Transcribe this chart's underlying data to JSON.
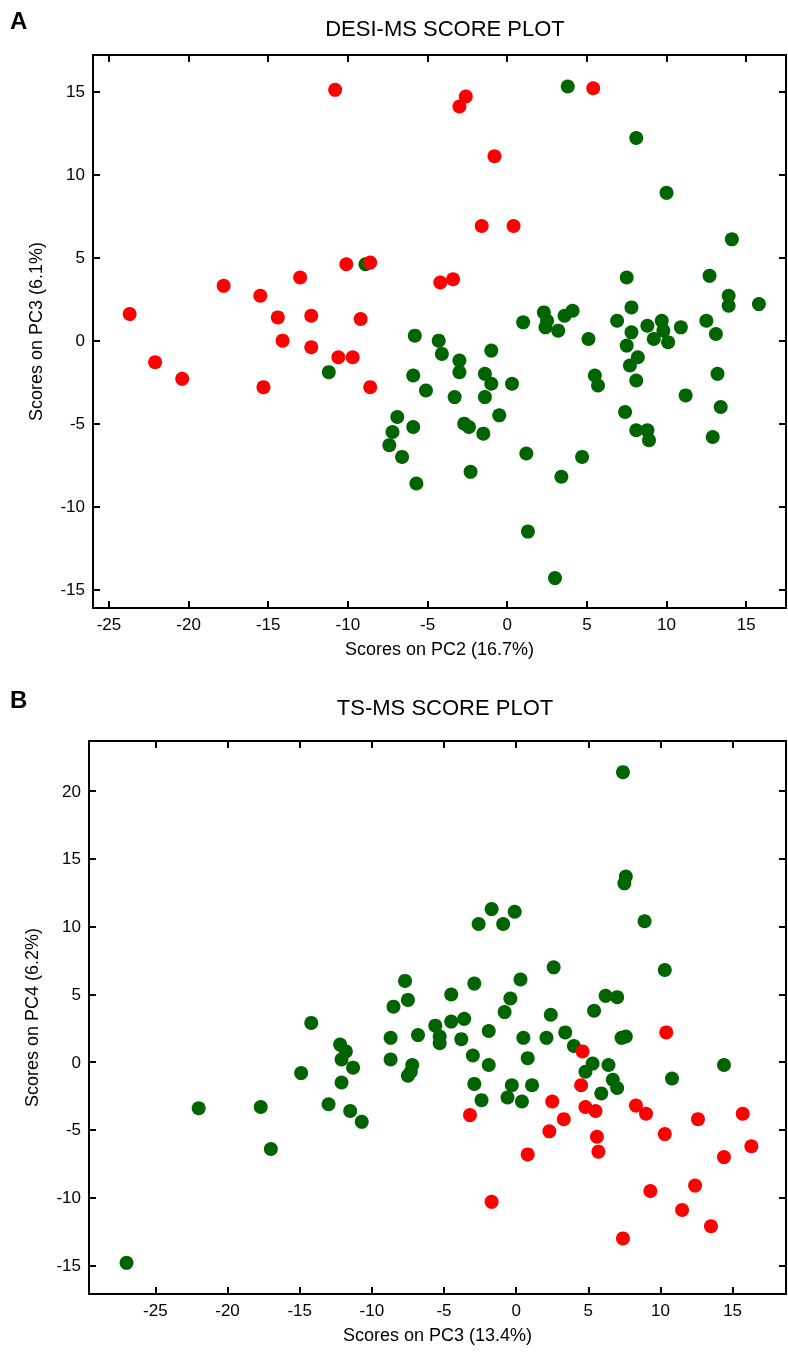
{
  "chart_data": [
    {
      "type": "scatter",
      "title": "DESI-MS SCORE PLOT",
      "xlabel": "Scores on PC2 (16.7%)",
      "ylabel": "Scores on PC3 (6.1%)",
      "annotations": [
        "A"
      ],
      "marker": "circle",
      "xlim": [
        -26,
        17.5
      ],
      "xticks": [
        -25,
        -20,
        -15,
        -10,
        -5,
        0,
        5,
        10,
        15
      ],
      "ylim": [
        -16.1,
        17.2
      ],
      "yticks": [
        -15,
        -10,
        -5,
        0,
        5,
        10,
        15
      ],
      "series": [
        {
          "color": "#006400",
          "x": [
            -8.9,
            -11.2,
            -5.8,
            -5.9,
            -5.1,
            -6.9,
            -7.2,
            -7.4,
            -6.6,
            -5.9,
            -5.7,
            3.8,
            8.1,
            10.0,
            14.1,
            7.5,
            12.7,
            13.9,
            13.9,
            15.8,
            7.8,
            6.9,
            7.8,
            8.8,
            9.7,
            9.8,
            9.2,
            10.1,
            10.9,
            12.5,
            13.1,
            7.5,
            8.2,
            7.7,
            8.1,
            13.2,
            5.5,
            5.7,
            11.2,
            13.4,
            7.4,
            8.1,
            8.8,
            8.9,
            12.9,
            5.1,
            1.0,
            2.3,
            2.5,
            2.4,
            3.2,
            3.6,
            4.1,
            -4.3,
            -4.1,
            -3.0,
            -3.0,
            -1.0,
            -1.4,
            -1.0,
            0.3,
            -3.3,
            -1.4,
            -2.7,
            -2.4,
            -0.5,
            -1.5,
            -2.3,
            1.2,
            3.4,
            4.7,
            1.3,
            3.0
          ],
          "values": [
            4.6,
            -1.9,
            0.3,
            -2.1,
            -3.0,
            -4.6,
            -5.5,
            -6.3,
            -7.0,
            -5.2,
            -8.6,
            15.3,
            12.2,
            8.9,
            6.1,
            3.8,
            3.9,
            2.7,
            2.1,
            2.2,
            2.0,
            1.2,
            0.5,
            0.9,
            1.2,
            0.6,
            0.1,
            -0.1,
            0.8,
            1.2,
            0.4,
            -0.3,
            -1.0,
            -1.5,
            -2.4,
            -2.0,
            -2.1,
            -2.7,
            -3.3,
            -4.0,
            -4.3,
            -5.4,
            -5.4,
            -6.0,
            -5.8,
            0.1,
            1.1,
            1.7,
            1.2,
            0.8,
            0.6,
            1.5,
            1.8,
            0.0,
            -0.8,
            -1.2,
            -1.9,
            -0.6,
            -2.0,
            -2.6,
            -2.6,
            -3.4,
            -3.4,
            -5.0,
            -5.2,
            -4.5,
            -5.6,
            -7.9,
            -6.8,
            -8.2,
            -7.0,
            -11.5,
            -14.3
          ]
        },
        {
          "color": "#ff0000",
          "x": [
            -23.7,
            -22.1,
            -20.4,
            -17.8,
            -15.5,
            -15.3,
            -14.4,
            -14.1,
            -13.0,
            -12.3,
            -12.3,
            -10.8,
            -10.1,
            -10.6,
            -9.7,
            -9.2,
            -8.6,
            -8.6,
            -4.2,
            -3.4,
            -3.0,
            -2.6,
            -0.8,
            -1.6,
            0.4,
            5.4
          ],
          "values": [
            1.6,
            -1.3,
            -2.3,
            3.3,
            2.7,
            -2.8,
            1.4,
            0.0,
            3.8,
            1.5,
            -0.4,
            15.1,
            4.6,
            -1.0,
            -1.0,
            1.3,
            4.7,
            -2.8,
            3.5,
            3.7,
            14.1,
            14.7,
            11.1,
            6.9,
            6.9,
            15.2
          ]
        }
      ]
    },
    {
      "type": "scatter",
      "title": "TS-MS SCORE PLOT",
      "xlabel": "Scores on PC3 (13.4%)",
      "ylabel": "Scores on PC4 (6.2%)",
      "annotations": [
        "B"
      ],
      "marker": "circle",
      "xlim": [
        -29.6,
        18.7
      ],
      "xticks": [
        -25,
        -20,
        -15,
        -10,
        -5,
        0,
        5,
        10,
        15
      ],
      "ylim": [
        -17.1,
        23.7
      ],
      "yticks": [
        -15,
        -10,
        -5,
        0,
        5,
        10,
        15,
        20
      ],
      "series": [
        {
          "color": "#006400",
          "x": [
            -27.0,
            -22.0,
            -17.7,
            -17.0,
            -14.2,
            -14.9,
            -13.0,
            -12.2,
            -11.8,
            -12.1,
            -11.3,
            -12.1,
            -11.5,
            -10.7,
            -8.7,
            -8.7,
            -8.5,
            7.4,
            7.6,
            7.5,
            8.9,
            -1.7,
            -2.6,
            -0.9,
            -0.1,
            2.6,
            10.3,
            -7.7,
            -7.5,
            -4.5,
            -2.9,
            0.3,
            -0.4,
            -0.8,
            2.4,
            -5.6,
            -4.5,
            -3.6,
            -1.9,
            -6.8,
            -5.3,
            -5.3,
            -3.8,
            0.5,
            2.1,
            3.4,
            4.0,
            5.4,
            6.2,
            7.0,
            7.3,
            7.6,
            -7.2,
            -7.5,
            -7.3,
            -3.0,
            -1.9,
            0.8,
            -2.9,
            -2.4,
            -0.6,
            -0.3,
            0.4,
            1.1,
            5.3,
            4.8,
            6.4,
            6.7,
            7.0,
            5.9,
            10.8,
            14.4
          ],
          "values": [
            -14.8,
            -3.4,
            -3.3,
            -6.4,
            2.9,
            -0.8,
            -3.1,
            1.3,
            0.8,
            0.2,
            -0.4,
            -1.5,
            -3.6,
            -4.4,
            1.8,
            0.2,
            4.1,
            21.4,
            13.7,
            13.2,
            10.4,
            11.3,
            10.2,
            10.2,
            11.1,
            7.0,
            6.8,
            6.0,
            4.6,
            5.0,
            5.8,
            6.1,
            4.7,
            3.7,
            3.5,
            2.7,
            3.0,
            3.2,
            2.3,
            2.0,
            1.9,
            1.4,
            1.7,
            1.8,
            1.8,
            2.2,
            1.2,
            3.8,
            4.9,
            4.8,
            1.8,
            1.9,
            -0.2,
            -1.0,
            -0.7,
            0.5,
            -0.2,
            0.3,
            -1.6,
            -2.8,
            -2.6,
            -1.7,
            -2.9,
            -1.7,
            -0.1,
            -0.7,
            -0.2,
            -1.3,
            -1.9,
            -2.3,
            -1.2,
            -0.2
          ]
        },
        {
          "color": "#ff0000",
          "x": [
            10.4,
            4.6,
            4.5,
            4.8,
            5.5,
            2.5,
            3.3,
            2.3,
            -3.2,
            0.8,
            -1.7,
            5.6,
            5.7,
            8.3,
            9.0,
            10.3,
            12.6,
            15.7,
            16.3,
            14.4,
            9.3,
            12.4,
            11.5,
            13.5,
            7.4
          ],
          "values": [
            2.2,
            0.8,
            -1.7,
            -3.3,
            -3.6,
            -2.9,
            -4.2,
            -5.1,
            -3.9,
            -6.8,
            -10.3,
            -5.5,
            -6.6,
            -3.2,
            -3.8,
            -5.3,
            -4.2,
            -3.8,
            -6.2,
            -7.0,
            -9.5,
            -9.1,
            -10.9,
            -12.1,
            -13.0
          ]
        }
      ]
    }
  ]
}
